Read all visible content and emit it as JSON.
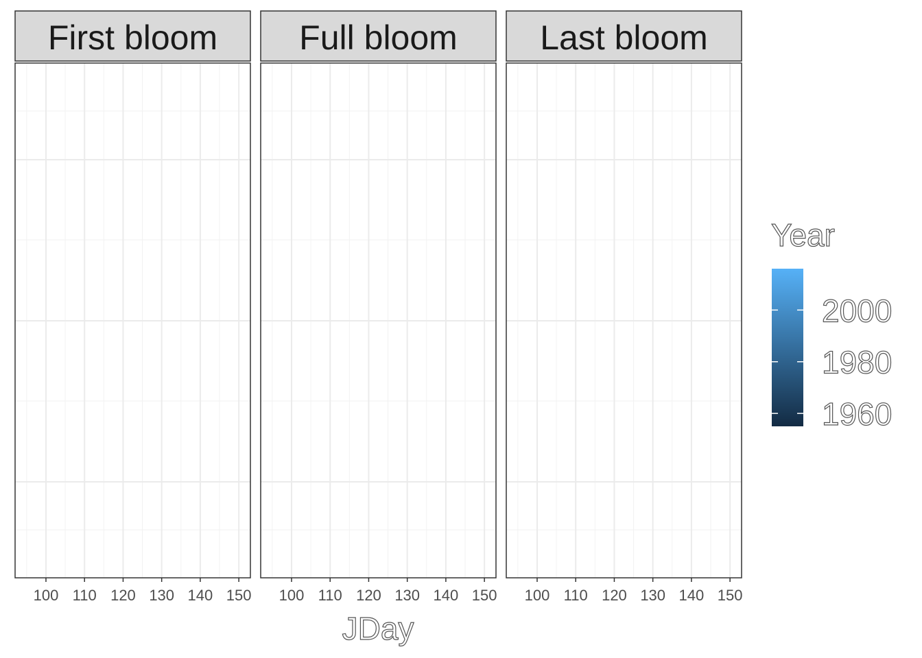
{
  "chart_data": {
    "type": "scatter",
    "facets": [
      "First bloom",
      "Full bloom",
      "Last bloom"
    ],
    "xlabel": "JDay",
    "ylabel": "",
    "x_ticks": [
      100,
      110,
      120,
      130,
      140,
      150
    ],
    "xlim": [
      92,
      153
    ],
    "grid": true,
    "series": [],
    "legend": {
      "title": "Year",
      "type": "colorbar",
      "ticks": [
        1960,
        1980,
        2000
      ],
      "range": [
        1955,
        2016
      ],
      "color_low": "#132B43",
      "color_high": "#56B1F7",
      "placement": "right"
    }
  }
}
